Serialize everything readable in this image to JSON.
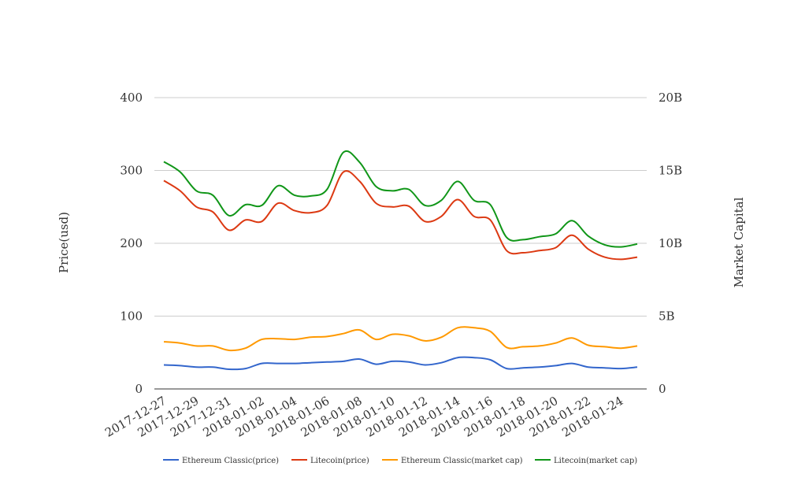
{
  "chart_data": {
    "type": "line",
    "title": "",
    "ylabel": "Price(usd)",
    "y2label": "Market Capital",
    "ylim": [
      0,
      400
    ],
    "y2lim": [
      0,
      20000000000
    ],
    "yticks": [
      "0",
      "100",
      "200",
      "300",
      "400"
    ],
    "y2ticks": [
      "0",
      "5B",
      "10B",
      "15B",
      "20B"
    ],
    "categories": [
      "2017-12-27",
      "2017-12-28",
      "2017-12-29",
      "2017-12-30",
      "2017-12-31",
      "2018-01-01",
      "2018-01-02",
      "2018-01-03",
      "2018-01-04",
      "2018-01-05",
      "2018-01-06",
      "2018-01-07",
      "2018-01-08",
      "2018-01-09",
      "2018-01-10",
      "2018-01-11",
      "2018-01-12",
      "2018-01-13",
      "2018-01-14",
      "2018-01-15",
      "2018-01-16",
      "2018-01-17",
      "2018-01-18",
      "2018-01-19",
      "2018-01-20",
      "2018-01-21",
      "2018-01-22",
      "2018-01-23",
      "2018-01-24",
      "2018-01-25"
    ],
    "xticks": [
      "2017-12-27",
      "2017-12-29",
      "2017-12-31",
      "2018-01-02",
      "2018-01-04",
      "2018-01-06",
      "2018-01-08",
      "2018-01-10",
      "2018-01-12",
      "2018-01-14",
      "2018-01-16",
      "2018-01-18",
      "2018-01-20",
      "2018-01-22",
      "2018-01-24"
    ],
    "series": [
      {
        "name": "Ethereum Classic(price)",
        "axis": "left",
        "color": "#3366cc",
        "values": [
          33,
          32,
          30,
          30,
          27,
          28,
          35,
          35,
          35,
          36,
          37,
          38,
          41,
          34,
          38,
          37,
          33,
          36,
          43,
          43,
          40,
          28,
          29,
          30,
          32,
          35,
          30,
          29,
          28,
          30
        ]
      },
      {
        "name": "Litecoin(price)",
        "axis": "left",
        "color": "#dc3912",
        "values": [
          286,
          272,
          250,
          243,
          218,
          232,
          230,
          255,
          245,
          242,
          252,
          298,
          285,
          255,
          250,
          251,
          230,
          237,
          260,
          237,
          232,
          190,
          187,
          190,
          194,
          211,
          192,
          181,
          178,
          181
        ]
      },
      {
        "name": "Ethereum Classic(market cap)",
        "axis": "right",
        "color": "#ff9900",
        "values": [
          3240000000,
          3150000000,
          2950000000,
          2950000000,
          2650000000,
          2800000000,
          3400000000,
          3450000000,
          3400000000,
          3550000000,
          3600000000,
          3800000000,
          4050000000,
          3400000000,
          3750000000,
          3650000000,
          3300000000,
          3550000000,
          4200000000,
          4200000000,
          3950000000,
          2850000000,
          2900000000,
          2950000000,
          3150000000,
          3500000000,
          3000000000,
          2900000000,
          2800000000,
          2950000000
        ]
      },
      {
        "name": "Litecoin(market cap)",
        "axis": "right",
        "color": "#109618",
        "values": [
          15600000000,
          14900000000,
          13600000000,
          13300000000,
          11900000000,
          12650000000,
          12600000000,
          13950000000,
          13300000000,
          13250000000,
          13700000000,
          16250000000,
          15550000000,
          13900000000,
          13600000000,
          13700000000,
          12600000000,
          12950000000,
          14250000000,
          12950000000,
          12650000000,
          10400000000,
          10250000000,
          10450000000,
          10650000000,
          11550000000,
          10500000000,
          9900000000,
          9750000000,
          9950000000
        ]
      }
    ]
  }
}
